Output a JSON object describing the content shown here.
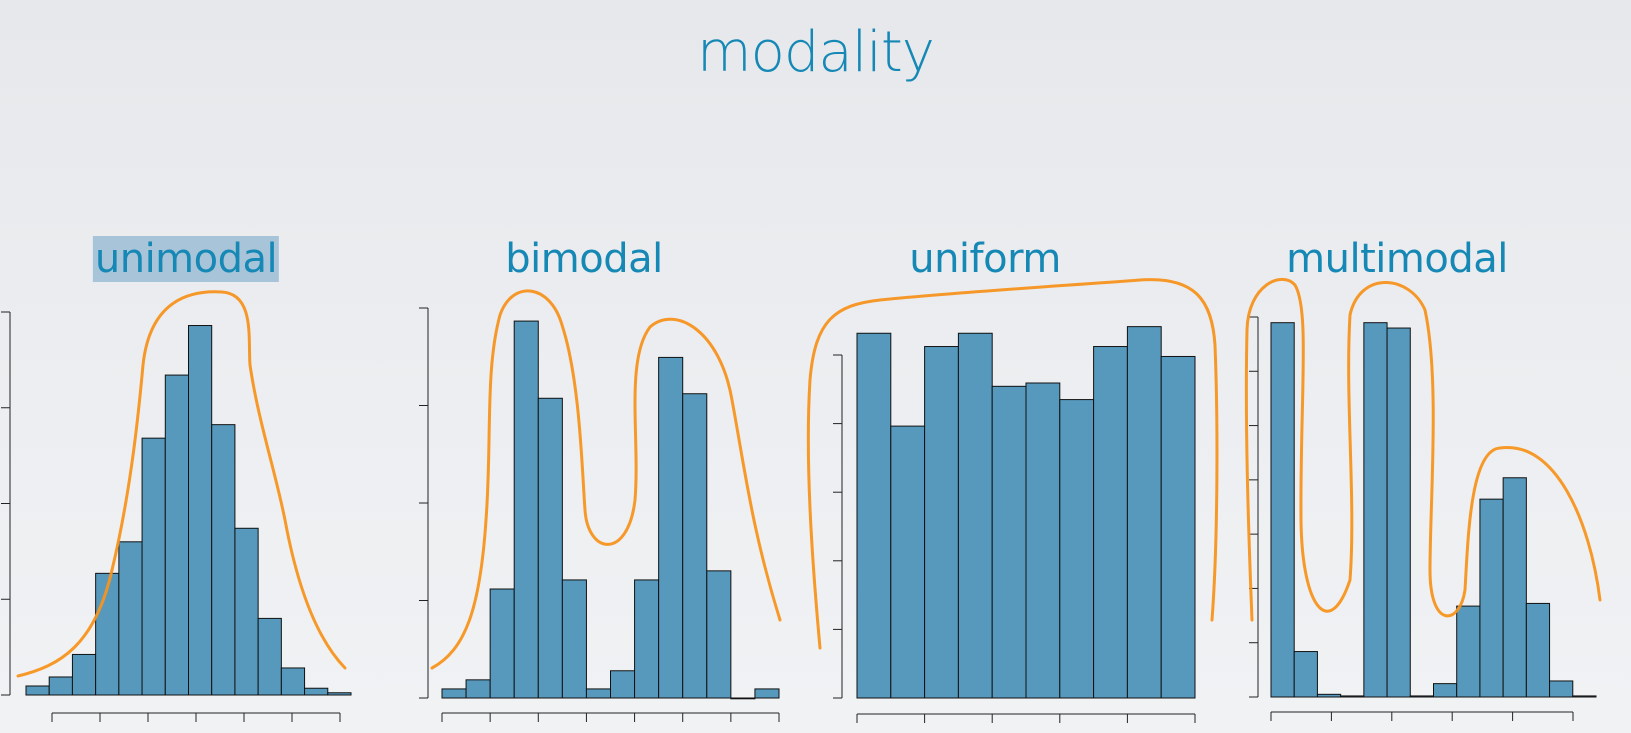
{
  "slide": {
    "title": "modality"
  },
  "colors": {
    "bar_fill": "#5699bd",
    "bar_stroke": "#111111",
    "annotation": "#f7941d",
    "title": "#1688b5",
    "highlight": "#a8c4d8"
  },
  "chart_data": [
    {
      "type": "bar",
      "title": "unimodal",
      "title_highlighted": true,
      "values": [
        2,
        4,
        9,
        27,
        34,
        57,
        71,
        82,
        60,
        37,
        17,
        6,
        1.5,
        0.5
      ],
      "ylim": [
        0,
        85
      ],
      "ytick_count": 5,
      "xtick_count": 7,
      "annotation": "hand-drawn orange curve tracing the single peak"
    },
    {
      "type": "bar",
      "title": "bimodal",
      "title_highlighted": false,
      "values": [
        2,
        4,
        24,
        83,
        66,
        26,
        2,
        6,
        26,
        75,
        67,
        28,
        0,
        2
      ],
      "ylim": [
        0,
        85
      ],
      "ytick_count": 5,
      "xtick_count": 8,
      "annotation": "hand-drawn orange curve tracing two peaks"
    },
    {
      "type": "bar",
      "title": "uniform",
      "title_highlighted": false,
      "values": [
        55,
        41,
        53,
        55,
        47,
        47.5,
        45,
        53,
        56,
        51.5
      ],
      "ylim": [
        0,
        57
      ],
      "ytick_count": 6,
      "xtick_count": 6,
      "annotation": "hand-drawn orange curve tracing a flat top"
    },
    {
      "type": "bar",
      "title": "multimodal",
      "title_highlighted": false,
      "values": [
        70,
        8.5,
        0.5,
        0.2,
        70,
        69,
        0.2,
        2.5,
        17,
        37,
        41,
        17.5,
        3,
        0.2
      ],
      "ylim": [
        0,
        72
      ],
      "ytick_count": 8,
      "xtick_count": 6,
      "annotation": "hand-drawn orange curve tracing three peaks"
    }
  ]
}
